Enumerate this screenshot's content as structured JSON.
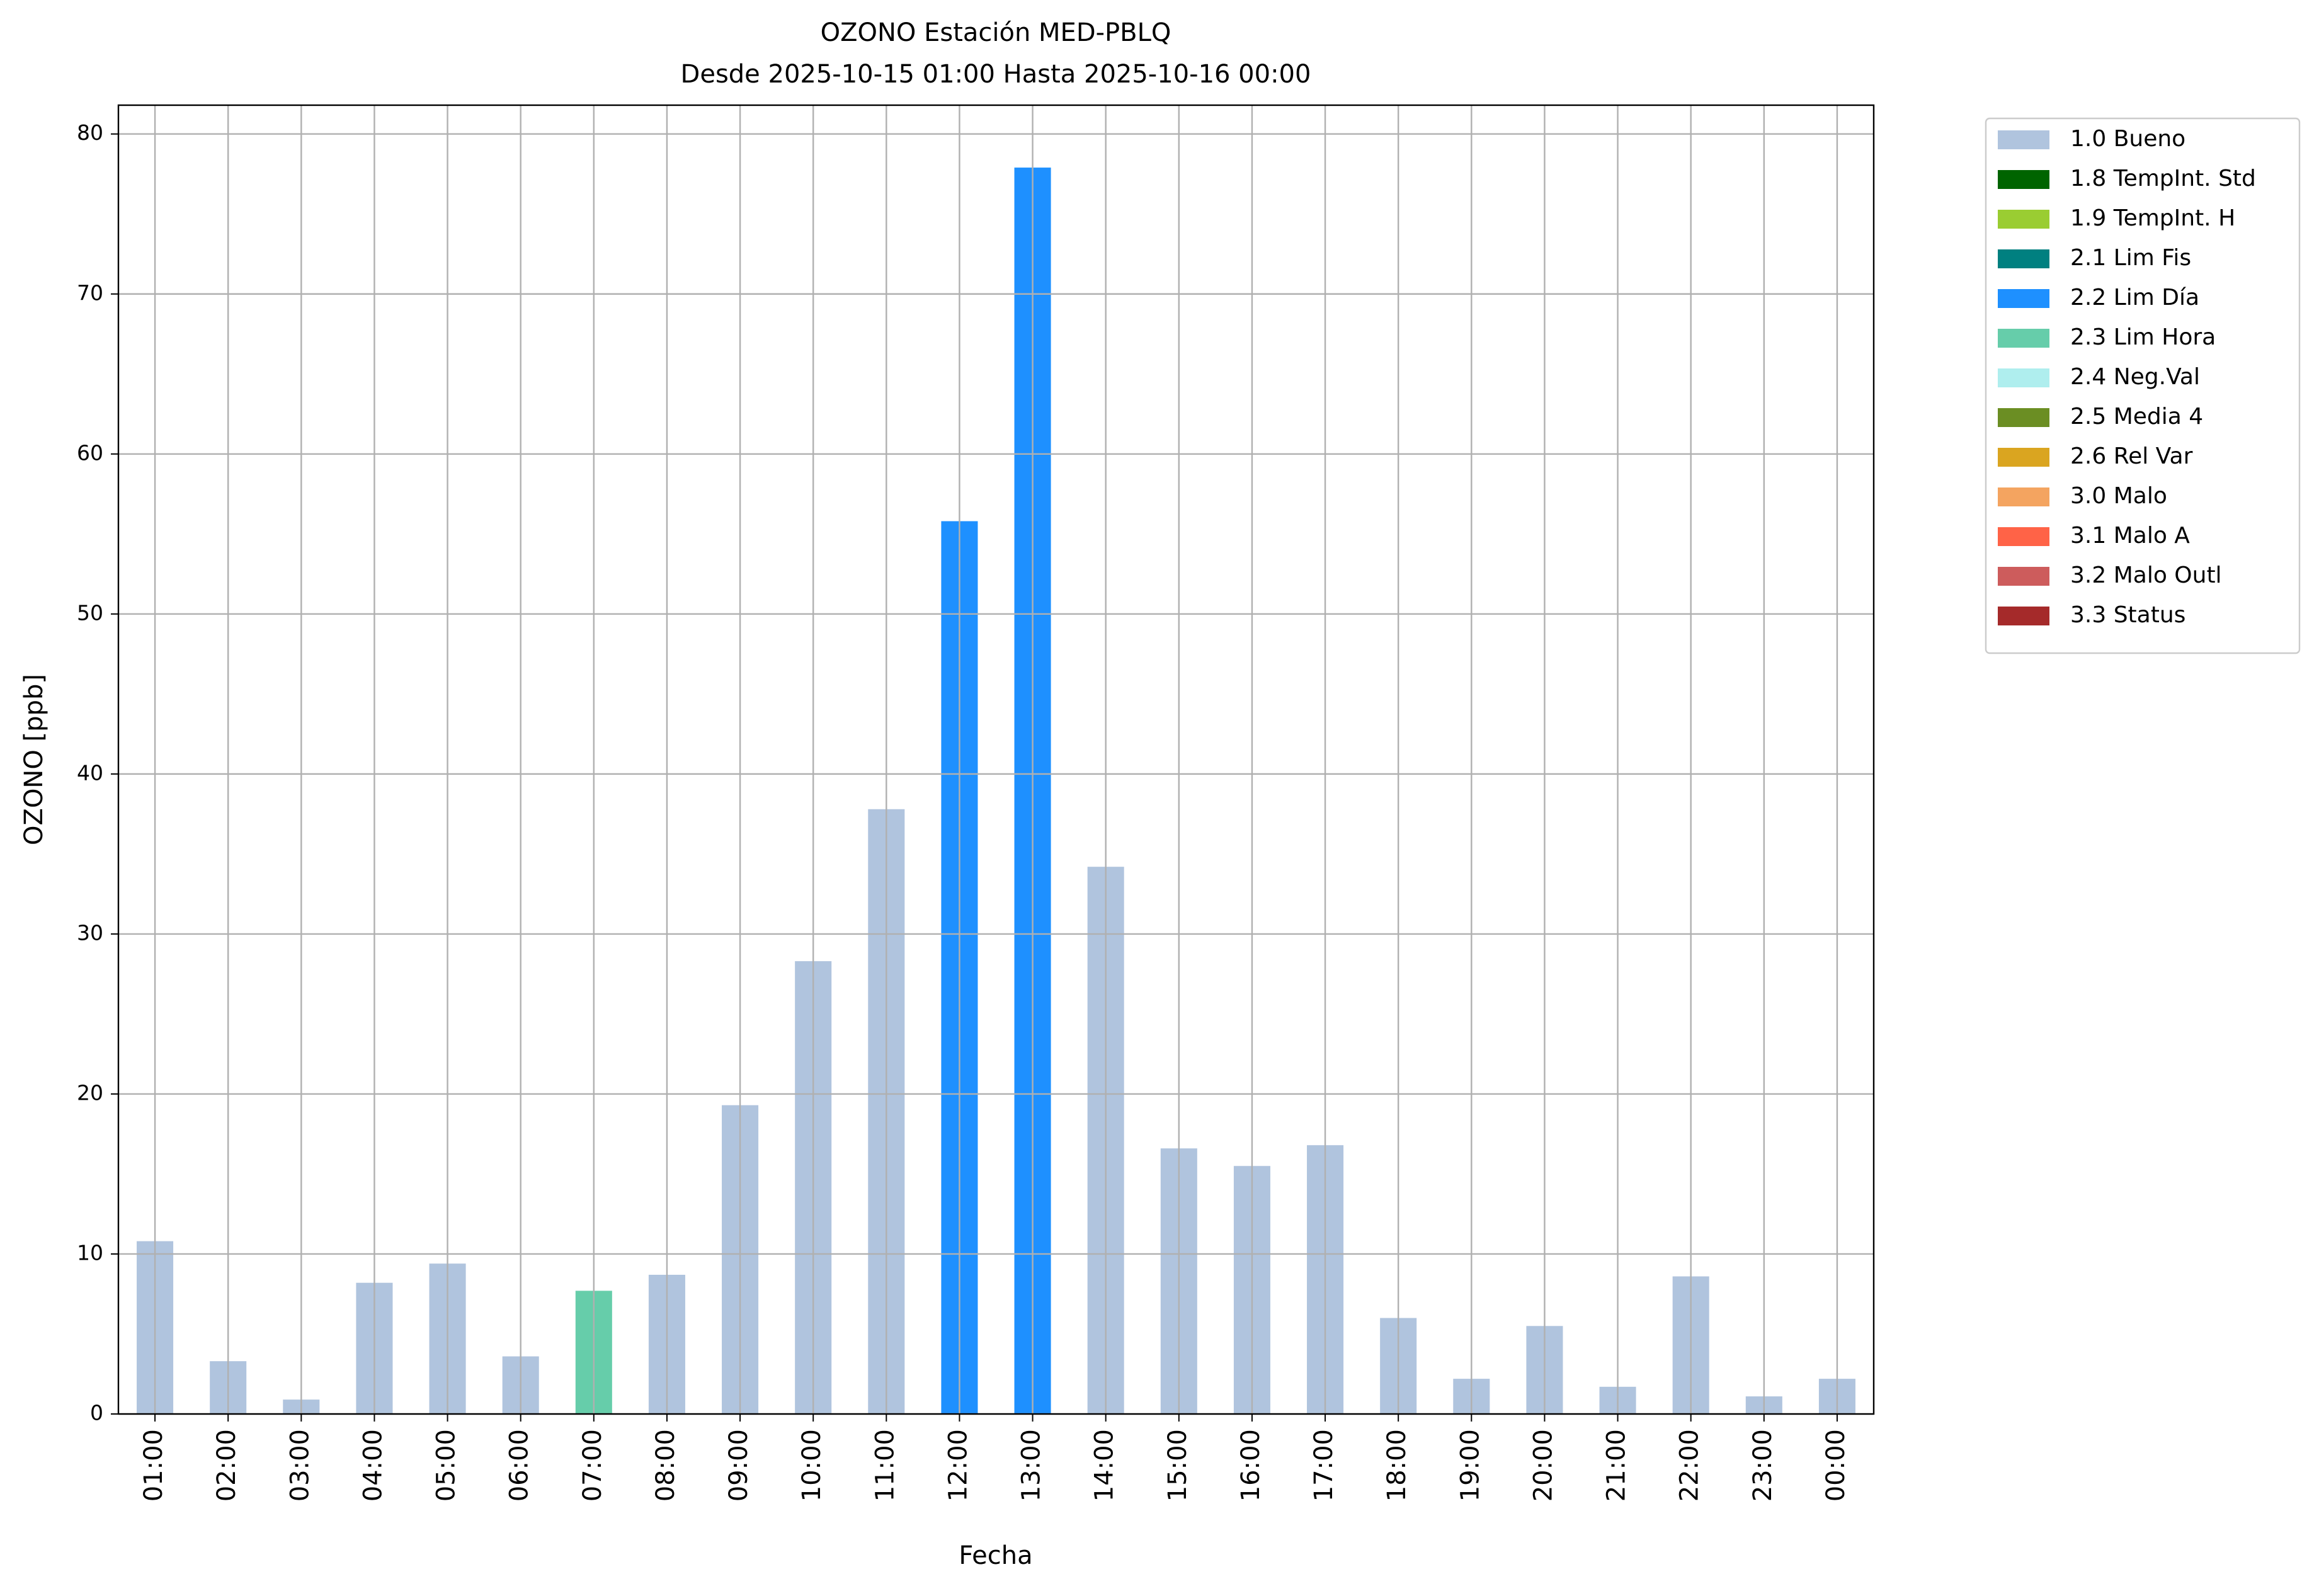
{
  "chart_data": {
    "type": "bar",
    "title": "OZONO Estación MED-PBLQ",
    "subtitle": "Desde 2025-10-15 01:00 Hasta 2025-10-16 00:00",
    "x_label": "Fecha",
    "y_label": "OZONO [ppb]",
    "categories": [
      "01:00",
      "02:00",
      "03:00",
      "04:00",
      "05:00",
      "06:00",
      "07:00",
      "08:00",
      "09:00",
      "10:00",
      "11:00",
      "12:00",
      "13:00",
      "14:00",
      "15:00",
      "16:00",
      "17:00",
      "18:00",
      "19:00",
      "20:00",
      "21:00",
      "22:00",
      "23:00",
      "00:00"
    ],
    "values": [
      10.8,
      3.3,
      0.9,
      8.2,
      9.4,
      3.6,
      7.7,
      8.7,
      19.3,
      28.3,
      37.8,
      55.8,
      77.9,
      34.2,
      16.6,
      15.5,
      16.8,
      6.0,
      2.2,
      5.5,
      1.7,
      8.6,
      1.1,
      2.2
    ],
    "bar_colors": [
      "#b0c4de",
      "#b0c4de",
      "#b0c4de",
      "#b0c4de",
      "#b0c4de",
      "#b0c4de",
      "#66cdaa",
      "#b0c4de",
      "#b0c4de",
      "#b0c4de",
      "#b0c4de",
      "#1e90ff",
      "#1e90ff",
      "#b0c4de",
      "#b0c4de",
      "#b0c4de",
      "#b0c4de",
      "#b0c4de",
      "#b0c4de",
      "#b0c4de",
      "#b0c4de",
      "#b0c4de",
      "#b0c4de",
      "#b0c4de"
    ],
    "legend": [
      {
        "name": "1.0 Bueno",
        "color": "#b0c4de"
      },
      {
        "name": "1.8 TempInt. Std",
        "color": "#006400"
      },
      {
        "name": "1.9 TempInt. H",
        "color": "#9acd32"
      },
      {
        "name": "2.1 Lim Fis",
        "color": "#008080"
      },
      {
        "name": "2.2 Lim Día",
        "color": "#1e90ff"
      },
      {
        "name": "2.3 Lim Hora",
        "color": "#66cdaa"
      },
      {
        "name": "2.4 Neg.Val",
        "color": "#afeeee"
      },
      {
        "name": "2.5 Media 4",
        "color": "#6b8e23"
      },
      {
        "name": "2.6 Rel Var",
        "color": "#daa520"
      },
      {
        "name": "3.0 Malo",
        "color": "#f4a460"
      },
      {
        "name": "3.1 Malo A",
        "color": "#ff6347"
      },
      {
        "name": "3.2 Malo Outl",
        "color": "#cd5c5c"
      },
      {
        "name": "3.3 Status",
        "color": "#a52a2a"
      }
    ],
    "legend_position": "outside-upper-right",
    "ylim": [
      0,
      81.8
    ],
    "yticks": [
      0,
      10,
      20,
      30,
      40,
      50,
      60,
      70,
      80
    ],
    "grid": true
  }
}
